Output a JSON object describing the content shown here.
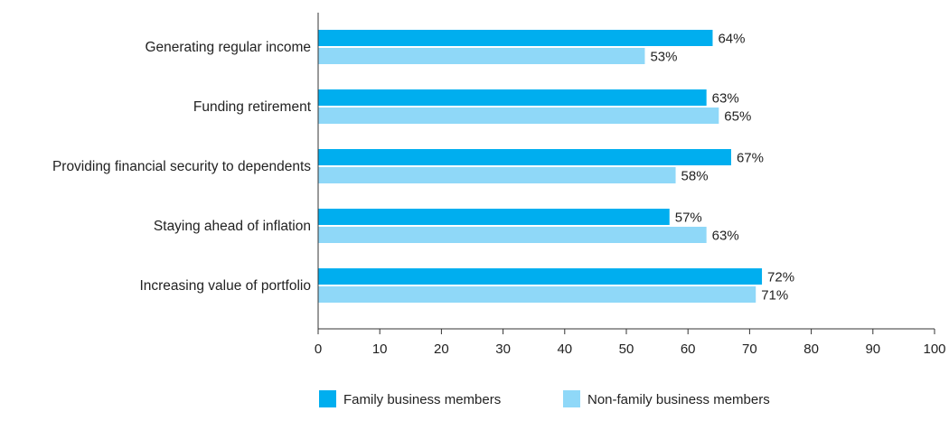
{
  "chart_data": {
    "type": "bar",
    "orientation": "horizontal",
    "title": "",
    "xlabel": "",
    "ylabel": "",
    "xlim": [
      0,
      100
    ],
    "xticks": [
      0,
      10,
      20,
      30,
      40,
      50,
      60,
      70,
      80,
      90,
      100
    ],
    "grid": false,
    "legend_position": "bottom",
    "value_suffix": "%",
    "categories": [
      "Generating regular income",
      "Funding retirement",
      "Providing financial security to dependents",
      "Staying ahead of inflation",
      "Increasing value of portfolio"
    ],
    "series": [
      {
        "name": "Family business members",
        "color": "#00aeef",
        "values": [
          64,
          63,
          67,
          57,
          72
        ]
      },
      {
        "name": "Non-family business members",
        "color": "#8fd8f8",
        "values": [
          53,
          65,
          58,
          63,
          71
        ]
      }
    ]
  }
}
